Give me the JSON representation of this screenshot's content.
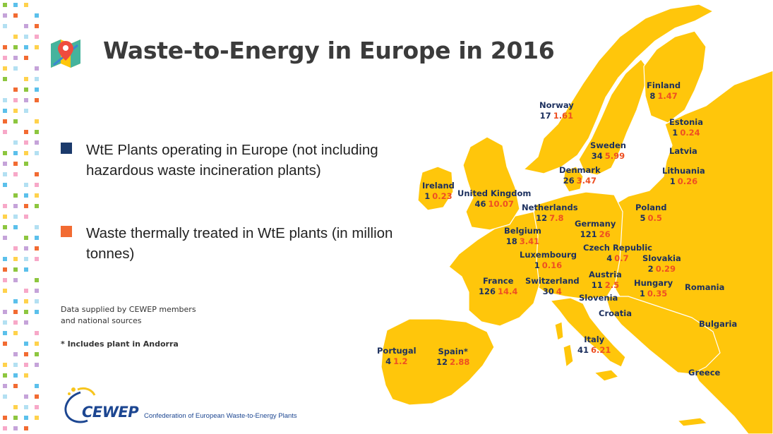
{
  "title": "Waste-to-Energy in Europe in 2016",
  "colors": {
    "land": "#ffc60b",
    "sea": "#ffffff",
    "plants": "#1b2f5e",
    "tonnes": "#ee4f22",
    "title": "#3b3b3b",
    "logo": "#1c4691"
  },
  "icons": {
    "title": "map-pin-icon",
    "logo": "cewep-logo-icon"
  },
  "legend": [
    {
      "label": "WtE Plants operating in Europe (not including hazardous waste incineration plants)",
      "color": "#1b3a6b"
    },
    {
      "label": "Waste thermally treated in WtE plants (in million tonnes)",
      "color": "#f26b32"
    }
  ],
  "notes": {
    "source": "Data supplied by CEWEP members and national sources",
    "andorra": "* Includes plant in Andorra"
  },
  "countries": [
    {
      "name": "Norway",
      "plants": "17",
      "tonnes": "1.61"
    },
    {
      "name": "Finland",
      "plants": "8",
      "tonnes": "1.47"
    },
    {
      "name": "Estonia",
      "plants": "1",
      "tonnes": "0.24"
    },
    {
      "name": "Sweden",
      "plants": "34",
      "tonnes": "5.99"
    },
    {
      "name": "Latvia",
      "plants": "",
      "tonnes": ""
    },
    {
      "name": "Denmark",
      "plants": "26",
      "tonnes": "3.47"
    },
    {
      "name": "Lithuania",
      "plants": "1",
      "tonnes": "0.26"
    },
    {
      "name": "Ireland",
      "plants": "1",
      "tonnes": "0.23"
    },
    {
      "name": "United Kingdom",
      "plants": "46",
      "tonnes": "10.07"
    },
    {
      "name": "Netherlands",
      "plants": "12",
      "tonnes": "7.8"
    },
    {
      "name": "Poland",
      "plants": "5",
      "tonnes": "0.5"
    },
    {
      "name": "Germany",
      "plants": "121",
      "tonnes": "26"
    },
    {
      "name": "Belgium",
      "plants": "18",
      "tonnes": "3.41"
    },
    {
      "name": "Czech Republic",
      "plants": "4",
      "tonnes": "0.7"
    },
    {
      "name": "Luxembourg",
      "plants": "1",
      "tonnes": "0.16"
    },
    {
      "name": "Slovakia",
      "plants": "2",
      "tonnes": "0.29"
    },
    {
      "name": "Austria",
      "plants": "11",
      "tonnes": "2.5"
    },
    {
      "name": "France",
      "plants": "126",
      "tonnes": "14.4"
    },
    {
      "name": "Switzerland",
      "plants": "30",
      "tonnes": "4"
    },
    {
      "name": "Hungary",
      "plants": "1",
      "tonnes": "0.35"
    },
    {
      "name": "Romania",
      "plants": "",
      "tonnes": ""
    },
    {
      "name": "Slovenia",
      "plants": "",
      "tonnes": ""
    },
    {
      "name": "Croatia",
      "plants": "",
      "tonnes": ""
    },
    {
      "name": "Bulgaria",
      "plants": "",
      "tonnes": ""
    },
    {
      "name": "Italy",
      "plants": "41",
      "tonnes": "6.21"
    },
    {
      "name": "Portugal",
      "plants": "4",
      "tonnes": "1.2"
    },
    {
      "name": "Spain*",
      "plants": "12",
      "tonnes": "2.88"
    },
    {
      "name": "Greece",
      "plants": "",
      "tonnes": ""
    }
  ],
  "logo": {
    "word": "CEWEP",
    "tagline": "Confederation of European Waste-to-Energy Plants"
  }
}
